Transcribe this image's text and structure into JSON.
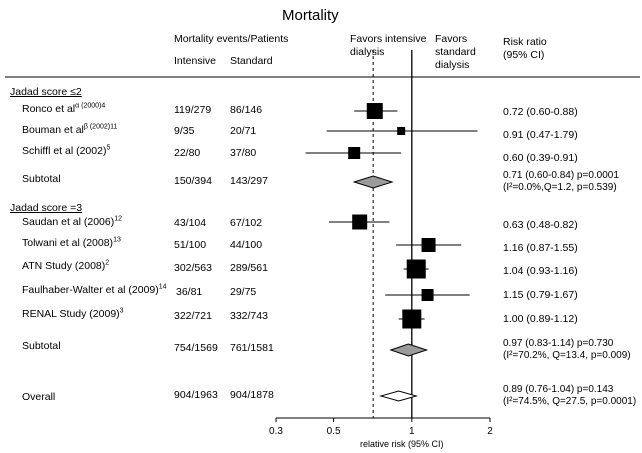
{
  "chart_data": {
    "type": "forest",
    "title": "Mortality",
    "header": {
      "events": "Mortality events/Patients",
      "intensive": "Intensive",
      "standard": "Standard",
      "favors_left": "Favors intensive dialysis",
      "favors_right": "Favors standard dialysis",
      "ratio": "Risk ratio (95% CI)"
    },
    "xlabel": "relative risk (95% CI)",
    "x_ticks": [
      0.3,
      0.5,
      1,
      2
    ],
    "x_tick_labels": [
      "0.3",
      "0.5",
      "1",
      "2"
    ],
    "xlim": [
      0.3,
      2
    ],
    "x_scale": "log",
    "reference_line": 1,
    "pooled_reference": 0.71,
    "groups": [
      {
        "label": "Jadad score ≤2",
        "studies": [
          {
            "name": "Ronco et al",
            "sup": "α (2000)4",
            "intensive": "119/279",
            "standard": "86/146",
            "rr": 0.72,
            "lo": 0.6,
            "hi": 0.88,
            "ci_text": "0.72 (0.60-0.88)",
            "weight": 16
          },
          {
            "name": "Bouman et al",
            "sup": "β (2002)11",
            "intensive": "9/35",
            "standard": "20/71",
            "rr": 0.91,
            "lo": 0.47,
            "hi": 1.79,
            "ci_text": "0.91 (0.47-1.79)",
            "weight": 8
          },
          {
            "name": "Schiffl et al (2002)",
            "sup": "5",
            "intensive": "22/80",
            "standard": "37/80",
            "rr": 0.6,
            "lo": 0.39,
            "hi": 0.91,
            "ci_text": "0.60 (0.39-0.91)",
            "weight": 12
          }
        ],
        "subtotal": {
          "label": "Subtotal",
          "intensive": "150/394",
          "standard": "143/297",
          "rr": 0.71,
          "lo": 0.6,
          "hi": 0.84,
          "ci_text": "0.71 (0.60-0.84)  p=0.0001",
          "het_text": "(I²=0.0%,Q=1.2, p=0.539)",
          "style": "filled"
        }
      },
      {
        "label": "Jadad score =3",
        "studies": [
          {
            "name": "Saudan et al (2006)",
            "sup": "12",
            "intensive": "43/104",
            "standard": "67/102",
            "rr": 0.63,
            "lo": 0.48,
            "hi": 0.82,
            "ci_text": "0.63 (0.48-0.82)",
            "weight": 15
          },
          {
            "name": "Tolwani et al (2008)",
            "sup": "13",
            "intensive": "51/100",
            "standard": "44/100",
            "rr": 1.16,
            "lo": 0.87,
            "hi": 1.55,
            "ci_text": "1.16 (0.87-1.55)",
            "weight": 14
          },
          {
            "name": "ATN Study (2008)",
            "sup": "2",
            "intensive": "302/563",
            "standard": "289/561",
            "rr": 1.04,
            "lo": 0.93,
            "hi": 1.16,
            "ci_text": "1.04 (0.93-1.16)",
            "weight": 19
          },
          {
            "name": "Faulhaber-Walter et al (2009)",
            "sup": "14",
            "intensive": "36/81",
            "standard": "29/75",
            "rr": 1.15,
            "lo": 0.79,
            "hi": 1.67,
            "ci_text": "1.15 (0.79-1.67)",
            "weight": 12
          },
          {
            "name": "RENAL Study (2009)",
            "sup": "3",
            "intensive": "322/721",
            "standard": "332/743",
            "rr": 1.0,
            "lo": 0.89,
            "hi": 1.12,
            "ci_text": "1.00 (0.89-1.12)",
            "weight": 19
          }
        ],
        "subtotal": {
          "label": "Subtotal",
          "intensive": "754/1569",
          "standard": "761/1581",
          "rr": 0.97,
          "lo": 0.83,
          "hi": 1.14,
          "ci_text": "0.97 (0.83-1.14)  p=0.730",
          "het_text": "(I²=70.2%, Q=13.4, p=0.009)",
          "style": "filled"
        }
      }
    ],
    "overall": {
      "label": "Overall",
      "intensive": "904/1963",
      "standard": "904/1878",
      "rr": 0.89,
      "lo": 0.76,
      "hi": 1.04,
      "ci_text": "0.89 (0.76-1.04)  p=0.143",
      "het_text": "(I²=74.5%, Q=27.5, p=0.0001)",
      "style": "open"
    }
  }
}
